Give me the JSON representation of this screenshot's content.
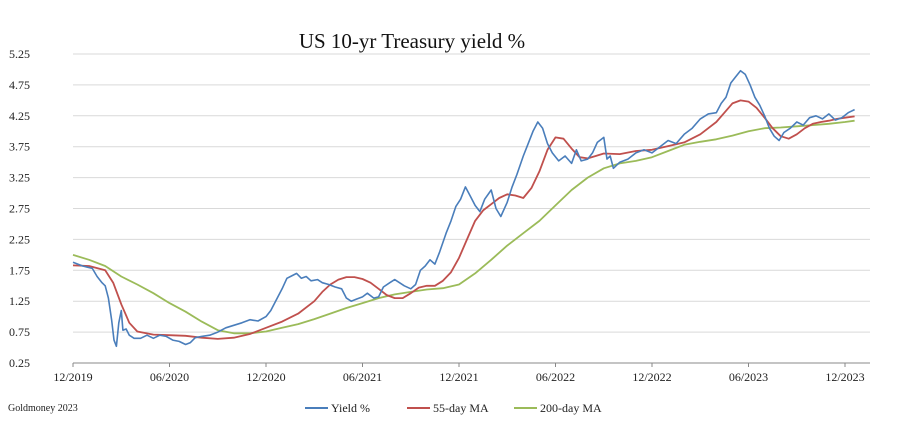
{
  "chart_data": {
    "type": "line",
    "title": "US 10-yr Treasury yield %",
    "xlabel": "",
    "ylabel": "",
    "source": "Goldmoney 2023",
    "x_ticks": [
      "12/2019",
      "06/2020",
      "12/2020",
      "06/2021",
      "12/2021",
      "06/2022",
      "12/2022",
      "06/2023",
      "12/2023"
    ],
    "y_ticks": [
      "0.25",
      "0.75",
      "1.25",
      "1.75",
      "2.25",
      "2.75",
      "3.25",
      "3.75",
      "4.25",
      "4.75",
      "5.25"
    ],
    "ylim": [
      0.25,
      5.25
    ],
    "x_range_months": [
      0,
      49.2
    ],
    "grid": "horizontal",
    "legend_position": "bottom",
    "series": [
      {
        "name": "Yield %",
        "color": "#4a7ebb",
        "points": [
          [
            0,
            1.88
          ],
          [
            0.3,
            1.85
          ],
          [
            0.6,
            1.82
          ],
          [
            0.9,
            1.8
          ],
          [
            1.2,
            1.78
          ],
          [
            1.5,
            1.65
          ],
          [
            1.8,
            1.55
          ],
          [
            2.0,
            1.5
          ],
          [
            2.2,
            1.3
          ],
          [
            2.4,
            0.95
          ],
          [
            2.55,
            0.62
          ],
          [
            2.7,
            0.52
          ],
          [
            2.85,
            0.9
          ],
          [
            3.0,
            1.1
          ],
          [
            3.1,
            0.78
          ],
          [
            3.3,
            0.8
          ],
          [
            3.5,
            0.7
          ],
          [
            3.8,
            0.65
          ],
          [
            4.2,
            0.65
          ],
          [
            4.6,
            0.7
          ],
          [
            5.0,
            0.65
          ],
          [
            5.4,
            0.7
          ],
          [
            5.8,
            0.68
          ],
          [
            6.2,
            0.62
          ],
          [
            6.6,
            0.6
          ],
          [
            7.0,
            0.55
          ],
          [
            7.3,
            0.58
          ],
          [
            7.6,
            0.66
          ],
          [
            8.0,
            0.68
          ],
          [
            8.5,
            0.7
          ],
          [
            9.0,
            0.75
          ],
          [
            9.5,
            0.82
          ],
          [
            10.0,
            0.86
          ],
          [
            10.5,
            0.9
          ],
          [
            11.0,
            0.95
          ],
          [
            11.5,
            0.93
          ],
          [
            12.0,
            1.0
          ],
          [
            12.3,
            1.1
          ],
          [
            12.6,
            1.25
          ],
          [
            13.0,
            1.45
          ],
          [
            13.3,
            1.62
          ],
          [
            13.6,
            1.66
          ],
          [
            13.9,
            1.7
          ],
          [
            14.2,
            1.62
          ],
          [
            14.5,
            1.65
          ],
          [
            14.8,
            1.58
          ],
          [
            15.2,
            1.6
          ],
          [
            15.5,
            1.55
          ],
          [
            15.9,
            1.52
          ],
          [
            16.3,
            1.48
          ],
          [
            16.7,
            1.45
          ],
          [
            17.0,
            1.3
          ],
          [
            17.3,
            1.25
          ],
          [
            17.6,
            1.28
          ],
          [
            18.0,
            1.32
          ],
          [
            18.3,
            1.38
          ],
          [
            18.7,
            1.3
          ],
          [
            19.0,
            1.32
          ],
          [
            19.3,
            1.48
          ],
          [
            19.7,
            1.55
          ],
          [
            20.0,
            1.6
          ],
          [
            20.3,
            1.55
          ],
          [
            20.6,
            1.5
          ],
          [
            21.0,
            1.45
          ],
          [
            21.3,
            1.52
          ],
          [
            21.6,
            1.75
          ],
          [
            21.9,
            1.82
          ],
          [
            22.2,
            1.92
          ],
          [
            22.5,
            1.85
          ],
          [
            22.8,
            2.05
          ],
          [
            23.2,
            2.35
          ],
          [
            23.5,
            2.55
          ],
          [
            23.8,
            2.78
          ],
          [
            24.1,
            2.9
          ],
          [
            24.4,
            3.1
          ],
          [
            24.7,
            2.95
          ],
          [
            25.0,
            2.8
          ],
          [
            25.3,
            2.7
          ],
          [
            25.6,
            2.9
          ],
          [
            26.0,
            3.05
          ],
          [
            26.3,
            2.75
          ],
          [
            26.6,
            2.62
          ],
          [
            27.0,
            2.85
          ],
          [
            27.3,
            3.1
          ],
          [
            27.6,
            3.3
          ],
          [
            28.0,
            3.6
          ],
          [
            28.3,
            3.8
          ],
          [
            28.6,
            4.0
          ],
          [
            28.9,
            4.15
          ],
          [
            29.2,
            4.05
          ],
          [
            29.5,
            3.8
          ],
          [
            29.8,
            3.65
          ],
          [
            30.2,
            3.52
          ],
          [
            30.6,
            3.6
          ],
          [
            31.0,
            3.48
          ],
          [
            31.3,
            3.7
          ],
          [
            31.6,
            3.52
          ],
          [
            32.0,
            3.55
          ],
          [
            32.3,
            3.65
          ],
          [
            32.6,
            3.82
          ],
          [
            33.0,
            3.9
          ],
          [
            33.2,
            3.55
          ],
          [
            33.4,
            3.6
          ],
          [
            33.6,
            3.4
          ],
          [
            34.0,
            3.5
          ],
          [
            34.5,
            3.55
          ],
          [
            35.0,
            3.65
          ],
          [
            35.5,
            3.7
          ],
          [
            36.0,
            3.65
          ],
          [
            36.5,
            3.75
          ],
          [
            37.0,
            3.85
          ],
          [
            37.5,
            3.8
          ],
          [
            38.0,
            3.95
          ],
          [
            38.5,
            4.05
          ],
          [
            39.0,
            4.2
          ],
          [
            39.5,
            4.28
          ],
          [
            40.0,
            4.3
          ],
          [
            40.3,
            4.45
          ],
          [
            40.6,
            4.55
          ],
          [
            40.9,
            4.78
          ],
          [
            41.2,
            4.88
          ],
          [
            41.5,
            4.98
          ],
          [
            41.8,
            4.92
          ],
          [
            42.1,
            4.75
          ],
          [
            42.4,
            4.55
          ],
          [
            42.7,
            4.42
          ],
          [
            43.0,
            4.25
          ],
          [
            43.3,
            4.05
          ],
          [
            43.6,
            3.92
          ],
          [
            43.9,
            3.85
          ],
          [
            44.2,
            3.98
          ],
          [
            44.6,
            4.05
          ],
          [
            45.0,
            4.15
          ],
          [
            45.4,
            4.1
          ],
          [
            45.8,
            4.22
          ],
          [
            46.2,
            4.25
          ],
          [
            46.6,
            4.2
          ],
          [
            47.0,
            4.28
          ],
          [
            47.4,
            4.18
          ],
          [
            47.8,
            4.22
          ],
          [
            48.2,
            4.3
          ],
          [
            48.6,
            4.35
          ]
        ]
      },
      {
        "name": "55-day MA",
        "color": "#c0504d",
        "points": [
          [
            0,
            1.83
          ],
          [
            1,
            1.82
          ],
          [
            2,
            1.75
          ],
          [
            2.5,
            1.55
          ],
          [
            3,
            1.2
          ],
          [
            3.5,
            0.9
          ],
          [
            4,
            0.76
          ],
          [
            5,
            0.71
          ],
          [
            6,
            0.7
          ],
          [
            7,
            0.69
          ],
          [
            8,
            0.66
          ],
          [
            9,
            0.64
          ],
          [
            10,
            0.66
          ],
          [
            11,
            0.72
          ],
          [
            12,
            0.82
          ],
          [
            13,
            0.92
          ],
          [
            14,
            1.05
          ],
          [
            15,
            1.25
          ],
          [
            15.5,
            1.4
          ],
          [
            16,
            1.52
          ],
          [
            16.5,
            1.6
          ],
          [
            17,
            1.64
          ],
          [
            17.5,
            1.64
          ],
          [
            18,
            1.61
          ],
          [
            18.5,
            1.55
          ],
          [
            19,
            1.45
          ],
          [
            19.5,
            1.35
          ],
          [
            20,
            1.3
          ],
          [
            20.5,
            1.3
          ],
          [
            21,
            1.38
          ],
          [
            21.5,
            1.47
          ],
          [
            22,
            1.5
          ],
          [
            22.5,
            1.5
          ],
          [
            23,
            1.58
          ],
          [
            23.5,
            1.72
          ],
          [
            24,
            1.95
          ],
          [
            24.5,
            2.25
          ],
          [
            25,
            2.55
          ],
          [
            25.5,
            2.72
          ],
          [
            26,
            2.82
          ],
          [
            26.5,
            2.92
          ],
          [
            27,
            2.98
          ],
          [
            27.5,
            2.96
          ],
          [
            28,
            2.92
          ],
          [
            28.5,
            3.08
          ],
          [
            29,
            3.35
          ],
          [
            29.5,
            3.7
          ],
          [
            30,
            3.9
          ],
          [
            30.5,
            3.88
          ],
          [
            31,
            3.72
          ],
          [
            31.5,
            3.58
          ],
          [
            32,
            3.56
          ],
          [
            32.5,
            3.6
          ],
          [
            33,
            3.64
          ],
          [
            34,
            3.63
          ],
          [
            35,
            3.68
          ],
          [
            36,
            3.7
          ],
          [
            37,
            3.76
          ],
          [
            38,
            3.82
          ],
          [
            39,
            3.95
          ],
          [
            40,
            4.15
          ],
          [
            40.5,
            4.3
          ],
          [
            41,
            4.45
          ],
          [
            41.5,
            4.5
          ],
          [
            42,
            4.48
          ],
          [
            42.5,
            4.38
          ],
          [
            43,
            4.22
          ],
          [
            43.5,
            4.05
          ],
          [
            44,
            3.92
          ],
          [
            44.5,
            3.88
          ],
          [
            45,
            3.95
          ],
          [
            45.5,
            4.05
          ],
          [
            46,
            4.12
          ],
          [
            46.5,
            4.15
          ],
          [
            47,
            4.17
          ],
          [
            47.5,
            4.2
          ],
          [
            48,
            4.22
          ],
          [
            48.6,
            4.24
          ]
        ]
      },
      {
        "name": "200-day MA",
        "color": "#9bbb59",
        "points": [
          [
            0,
            2.0
          ],
          [
            1,
            1.92
          ],
          [
            2,
            1.82
          ],
          [
            3,
            1.65
          ],
          [
            4,
            1.52
          ],
          [
            5,
            1.38
          ],
          [
            6,
            1.22
          ],
          [
            7,
            1.08
          ],
          [
            8,
            0.92
          ],
          [
            9,
            0.78
          ],
          [
            10,
            0.73
          ],
          [
            11,
            0.73
          ],
          [
            12,
            0.76
          ],
          [
            13,
            0.82
          ],
          [
            14,
            0.88
          ],
          [
            15,
            0.96
          ],
          [
            16,
            1.05
          ],
          [
            17,
            1.14
          ],
          [
            18,
            1.22
          ],
          [
            19,
            1.3
          ],
          [
            20,
            1.36
          ],
          [
            21,
            1.4
          ],
          [
            22,
            1.44
          ],
          [
            23,
            1.46
          ],
          [
            24,
            1.52
          ],
          [
            25,
            1.7
          ],
          [
            26,
            1.92
          ],
          [
            27,
            2.15
          ],
          [
            28,
            2.35
          ],
          [
            29,
            2.55
          ],
          [
            30,
            2.8
          ],
          [
            31,
            3.05
          ],
          [
            32,
            3.25
          ],
          [
            33,
            3.4
          ],
          [
            34,
            3.48
          ],
          [
            35,
            3.52
          ],
          [
            36,
            3.58
          ],
          [
            37,
            3.68
          ],
          [
            38,
            3.78
          ],
          [
            39,
            3.83
          ],
          [
            40,
            3.87
          ],
          [
            41,
            3.93
          ],
          [
            42,
            4.0
          ],
          [
            43,
            4.05
          ],
          [
            44,
            4.06
          ],
          [
            45,
            4.08
          ],
          [
            46,
            4.1
          ],
          [
            47,
            4.12
          ],
          [
            48,
            4.15
          ],
          [
            48.6,
            4.17
          ]
        ]
      }
    ]
  }
}
